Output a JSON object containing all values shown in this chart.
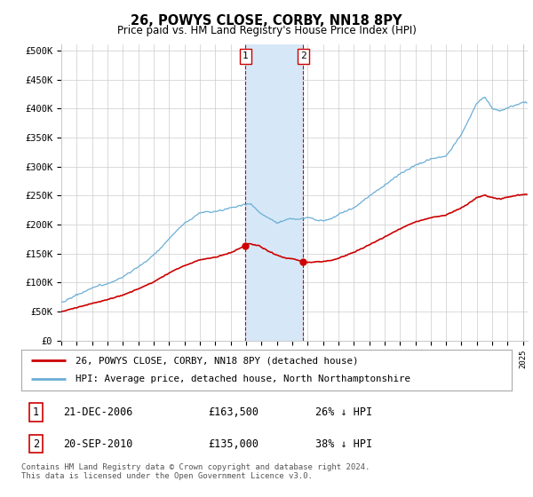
{
  "title": "26, POWYS CLOSE, CORBY, NN18 8PY",
  "subtitle": "Price paid vs. HM Land Registry's House Price Index (HPI)",
  "ylabel_ticks": [
    "£0",
    "£50K",
    "£100K",
    "£150K",
    "£200K",
    "£250K",
    "£300K",
    "£350K",
    "£400K",
    "£450K",
    "£500K"
  ],
  "ytick_values": [
    0,
    50000,
    100000,
    150000,
    200000,
    250000,
    300000,
    350000,
    400000,
    450000,
    500000
  ],
  "ylim": [
    0,
    510000
  ],
  "hpi_color": "#6baed6",
  "price_color": "#cc0000",
  "highlight_color_fill": "#d6e8f7",
  "highlight_color_border": "#cc0000",
  "transaction1_date": "21-DEC-2006",
  "transaction1_price": 163500,
  "transaction1_label": "1",
  "transaction1_x": 2006.97,
  "transaction2_date": "20-SEP-2010",
  "transaction2_price": 135000,
  "transaction2_label": "2",
  "transaction2_x": 2010.72,
  "legend_line1": "26, POWYS CLOSE, CORBY, NN18 8PY (detached house)",
  "legend_line2": "HPI: Average price, detached house, North Northamptonshire",
  "footnote": "Contains HM Land Registry data © Crown copyright and database right 2024.\nThis data is licensed under the Open Government Licence v3.0.",
  "background_color": "#ffffff",
  "grid_color": "#cccccc",
  "xlim_start": 1995,
  "xlim_end": 2025.3
}
